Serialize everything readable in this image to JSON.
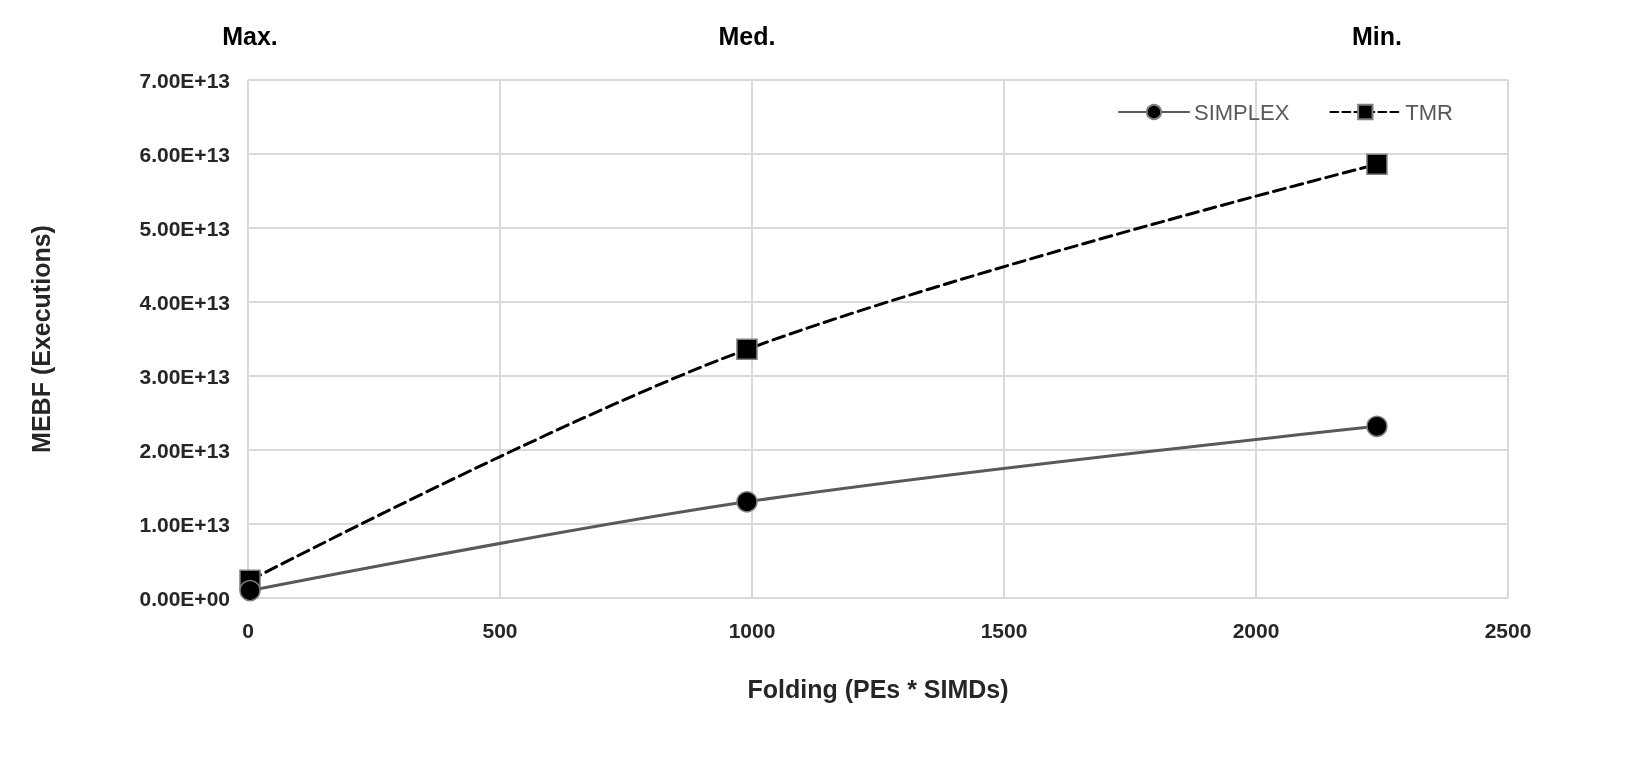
{
  "chart_data": {
    "type": "line",
    "xlabel": "Folding (PEs * SIMDs)",
    "ylabel": "MEBF (Executions)",
    "annotations": [
      "Max.",
      "Med.",
      "Min."
    ],
    "series": [
      {
        "name": "SIMPLEX",
        "color": "#595959",
        "x": [
          4,
          990,
          2240
        ],
        "values": [
          1000000000000.0,
          13000000000000.0,
          23200000000000.0
        ],
        "marker": "circle",
        "line_style": "solid"
      },
      {
        "name": "TMR",
        "color": "#000000",
        "x": [
          4,
          990,
          2240
        ],
        "values": [
          2400000000000.0,
          33600000000000.0,
          58600000000000.0
        ],
        "marker": "square",
        "line_style": "dashed"
      }
    ],
    "xlim": [
      0,
      2500
    ],
    "xticks": [
      0,
      500,
      1000,
      1500,
      2000,
      2500
    ],
    "ylim": [
      0,
      70000000000000.0
    ],
    "yticks": [
      {
        "value": 0,
        "label": "0.00E+00"
      },
      {
        "value": 10000000000000.0,
        "label": "1.00E+13"
      },
      {
        "value": 20000000000000.0,
        "label": "2.00E+13"
      },
      {
        "value": 30000000000000.0,
        "label": "3.00E+13"
      },
      {
        "value": 40000000000000.0,
        "label": "4.00E+13"
      },
      {
        "value": 50000000000000.0,
        "label": "5.00E+13"
      },
      {
        "value": 60000000000000.0,
        "label": "6.00E+13"
      },
      {
        "value": 70000000000000.0,
        "label": "7.00E+13"
      }
    ],
    "grid": true,
    "legend": "top right"
  }
}
